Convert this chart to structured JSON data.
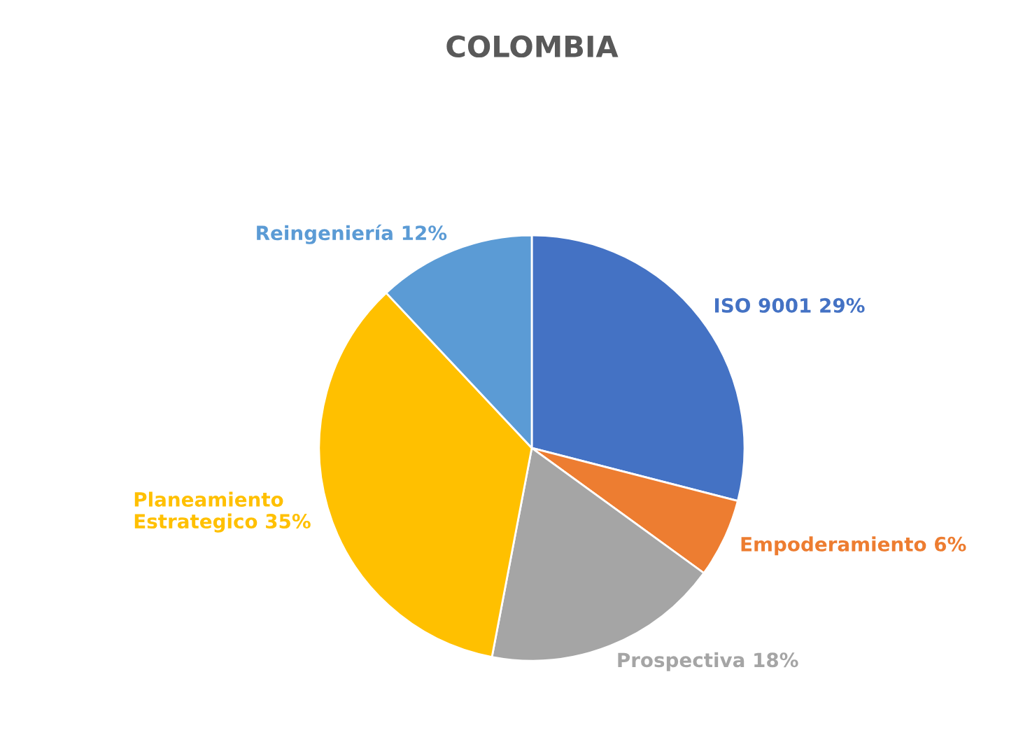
{
  "chart_data": {
    "type": "pie",
    "title": "COLOMBIA",
    "categories": [
      "ISO 9001",
      "Empoderamiento",
      "Prospectiva",
      "Planeamiento\nEstrategico",
      "Reingeniería"
    ],
    "values": [
      29,
      6,
      18,
      35,
      12
    ],
    "value_labels": [
      "29%",
      "6%",
      "18%",
      "35%",
      "12%"
    ],
    "colors": [
      "#4472c4",
      "#ed7d31",
      "#a5a5a5",
      "#ffc000",
      "#5b9bd5"
    ]
  }
}
